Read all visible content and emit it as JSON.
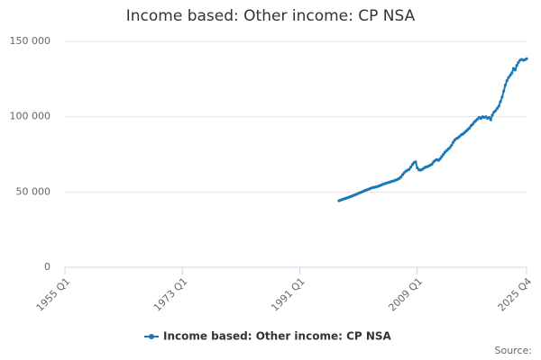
{
  "chart_data": {
    "type": "line",
    "title": "Income based: Other income: CP NSA",
    "source": "Source:",
    "categories": [
      "1955 Q1",
      null,
      null,
      null,
      null,
      null,
      null,
      null,
      null,
      null,
      null,
      null,
      null,
      null,
      null,
      null,
      null,
      null,
      null,
      null,
      null,
      null,
      null,
      null,
      null,
      null,
      null,
      null,
      null,
      null,
      null,
      null,
      null,
      null,
      null,
      null,
      null,
      null,
      null,
      null,
      null,
      null,
      null,
      null,
      null,
      null,
      null,
      null,
      null,
      null,
      null,
      null,
      null,
      null,
      null,
      null,
      null,
      null,
      null,
      null,
      null,
      null,
      null,
      null,
      null,
      null,
      null,
      null,
      null,
      null,
      null,
      null,
      "1973 Q1",
      null,
      null,
      null,
      null,
      null,
      null,
      null,
      null,
      null,
      null,
      null,
      null,
      null,
      null,
      null,
      null,
      null,
      null,
      null,
      null,
      null,
      null,
      null,
      null,
      null,
      null,
      null,
      null,
      null,
      null,
      null,
      null,
      null,
      null,
      null,
      null,
      null,
      null,
      null,
      null,
      null,
      null,
      null,
      null,
      null,
      null,
      null,
      null,
      null,
      null,
      null,
      null,
      null,
      null,
      null,
      null,
      null,
      null,
      null,
      null,
      null,
      null,
      null,
      null,
      null,
      null,
      null,
      null,
      null,
      null,
      null,
      "1991 Q1",
      null,
      null,
      null,
      null,
      null,
      null,
      null,
      null,
      null,
      null,
      null,
      null,
      null,
      null,
      null,
      null,
      null,
      null,
      null,
      null,
      null,
      null,
      null,
      null,
      null,
      null,
      null,
      null,
      null,
      null,
      null,
      null,
      null,
      null,
      null,
      null,
      null,
      null,
      null,
      null,
      null,
      null,
      null,
      null,
      null,
      null,
      null,
      null,
      null,
      null,
      null,
      null,
      null,
      null,
      null,
      null,
      null,
      null,
      null,
      null,
      null,
      null,
      null,
      null,
      null,
      null,
      null,
      null,
      null,
      null,
      null,
      "2009 Q1",
      null,
      null,
      null,
      null,
      null,
      null,
      null,
      null,
      null,
      null,
      null,
      null,
      null,
      null,
      null,
      null,
      null,
      null,
      null,
      null,
      null,
      null,
      null,
      null,
      null,
      null,
      null,
      null,
      null,
      null,
      null,
      null,
      null,
      null,
      null,
      null,
      null,
      null,
      null,
      null,
      null,
      null,
      null,
      null,
      null,
      null,
      null,
      null,
      null,
      null,
      null,
      null,
      null,
      null,
      null,
      null,
      null,
      null,
      null,
      null,
      null,
      null,
      null,
      null,
      null,
      null,
      "2025 Q4"
    ],
    "series": [
      {
        "name": "Income based: Other income: CP NSA",
        "color": "#1a78b8",
        "values": [
          null,
          null,
          null,
          null,
          null,
          null,
          null,
          null,
          null,
          null,
          null,
          null,
          null,
          null,
          null,
          null,
          null,
          null,
          null,
          null,
          null,
          null,
          null,
          null,
          null,
          null,
          null,
          null,
          null,
          null,
          null,
          null,
          null,
          null,
          null,
          null,
          null,
          null,
          null,
          null,
          null,
          null,
          null,
          null,
          null,
          null,
          null,
          null,
          null,
          null,
          null,
          null,
          null,
          null,
          null,
          null,
          null,
          null,
          null,
          null,
          null,
          null,
          null,
          null,
          null,
          null,
          null,
          null,
          null,
          null,
          null,
          null,
          null,
          null,
          null,
          null,
          null,
          null,
          null,
          null,
          null,
          null,
          null,
          null,
          null,
          null,
          null,
          null,
          null,
          null,
          null,
          null,
          null,
          null,
          null,
          null,
          null,
          null,
          null,
          null,
          null,
          null,
          null,
          null,
          null,
          null,
          null,
          null,
          null,
          null,
          null,
          null,
          null,
          null,
          null,
          null,
          null,
          null,
          null,
          null,
          null,
          null,
          null,
          null,
          null,
          null,
          null,
          null,
          null,
          null,
          null,
          null,
          null,
          null,
          null,
          null,
          null,
          null,
          null,
          null,
          null,
          null,
          null,
          null,
          null,
          null,
          null,
          null,
          null,
          null,
          null,
          null,
          null,
          null,
          null,
          null,
          null,
          null,
          null,
          null,
          null,
          null,
          null,
          null,
          null,
          null,
          null,
          null,
          44200,
          44600,
          45000,
          45400,
          45700,
          46100,
          46500,
          46900,
          47300,
          47800,
          48200,
          48600,
          49200,
          49600,
          50000,
          50500,
          51000,
          51400,
          51800,
          52200,
          52700,
          53000,
          53200,
          53400,
          53800,
          54200,
          54700,
          55100,
          55500,
          55800,
          56200,
          56500,
          56900,
          57200,
          57500,
          58000,
          58400,
          59000,
          60000,
          61500,
          62800,
          63800,
          64500,
          65000,
          66500,
          68200,
          69500,
          70000,
          66000,
          64800,
          64500,
          65000,
          65800,
          66500,
          66800,
          67200,
          67800,
          68500,
          70000,
          71000,
          71500,
          71000,
          72000,
          73500,
          75000,
          76500,
          77500,
          78500,
          79500,
          81000,
          83000,
          84500,
          85500,
          86000,
          87000,
          88000,
          88500,
          89500,
          90500,
          91500,
          92500,
          94000,
          95000,
          96500,
          97500,
          98500,
          99500,
          98800,
          100000,
          99500,
          100000,
          99000,
          99500,
          98000,
          101000,
          103000,
          104000,
          105500,
          107000,
          110000,
          113000,
          117000,
          121000,
          124000,
          126000,
          127500,
          129000,
          132000,
          131000,
          134000,
          136000,
          137500,
          138000,
          137500,
          137800,
          138500
        ]
      }
    ],
    "ylim": [
      0,
      150000
    ],
    "yticks": [
      0,
      {
        "value": 50000,
        "label": "50 000"
      },
      {
        "value": 100000,
        "label": "100 000"
      },
      {
        "value": 150000,
        "label": "150 000"
      }
    ],
    "grid": true
  }
}
